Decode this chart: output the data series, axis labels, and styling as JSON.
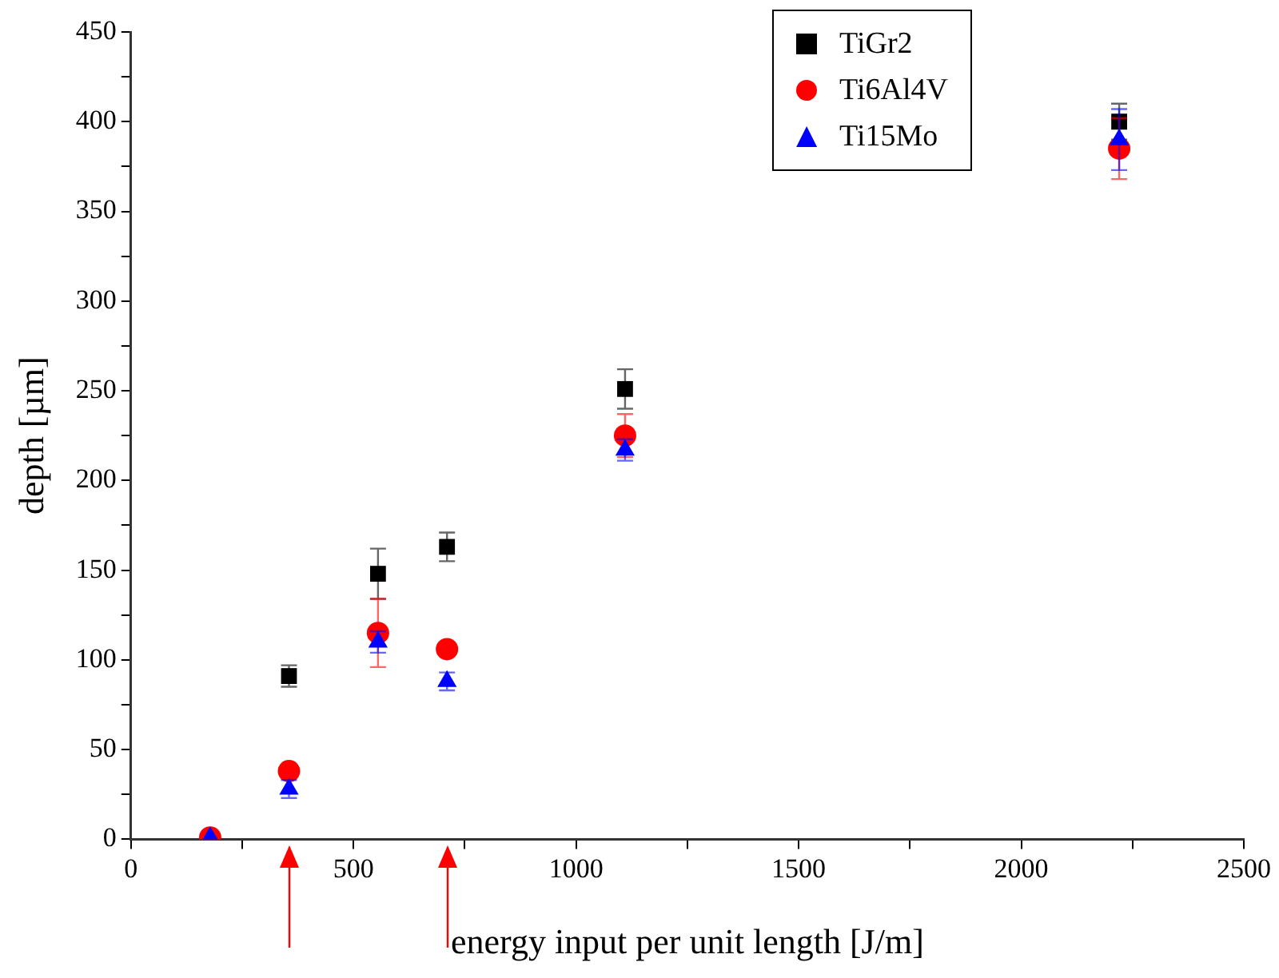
{
  "chart_data": {
    "type": "scatter",
    "xlabel": "energy input per unit length [J/m]",
    "ylabel": "depth [µm]",
    "x": [
      178,
      355,
      555,
      710,
      1110,
      2220
    ],
    "series": [
      {
        "name": "TiGr2",
        "color": "#000000",
        "marker": "square",
        "values": [
          null,
          91,
          148,
          163,
          251,
          400
        ],
        "errors": [
          null,
          6,
          14,
          8,
          11,
          10
        ]
      },
      {
        "name": "Ti6Al4V",
        "color": "#ff0000",
        "marker": "circle",
        "values": [
          1,
          38,
          115,
          106,
          225,
          385
        ],
        "errors": [
          null,
          null,
          19,
          null,
          12,
          17
        ]
      },
      {
        "name": "Ti15Mo",
        "color": "#0000ff",
        "marker": "triangle",
        "values": [
          1,
          28,
          110,
          88,
          217,
          390
        ],
        "errors": [
          null,
          5,
          6,
          5,
          6,
          17
        ]
      }
    ],
    "xlim": [
      0,
      2500
    ],
    "ylim": [
      0,
      450
    ],
    "xticks": [
      0,
      {
        "value": 250,
        "label": null
      },
      500,
      {
        "value": 750,
        "label": null
      },
      1000,
      {
        "value": 1250,
        "label": null
      },
      1500,
      {
        "value": 1750,
        "label": null
      },
      2000,
      {
        "value": 2250,
        "label": null
      },
      2500
    ],
    "yticks": [
      0,
      {
        "value": 25,
        "label": null
      },
      50,
      {
        "value": 75,
        "label": null
      },
      100,
      {
        "value": 125,
        "label": null
      },
      150,
      {
        "value": 175,
        "label": null
      },
      200,
      {
        "value": 225,
        "label": null
      },
      250,
      {
        "value": 275,
        "label": null
      },
      300,
      {
        "value": 325,
        "label": null
      },
      350,
      {
        "value": 375,
        "label": null
      },
      400,
      {
        "value": 425,
        "label": null
      },
      450
    ],
    "grid": false,
    "legend": "top right"
  }
}
